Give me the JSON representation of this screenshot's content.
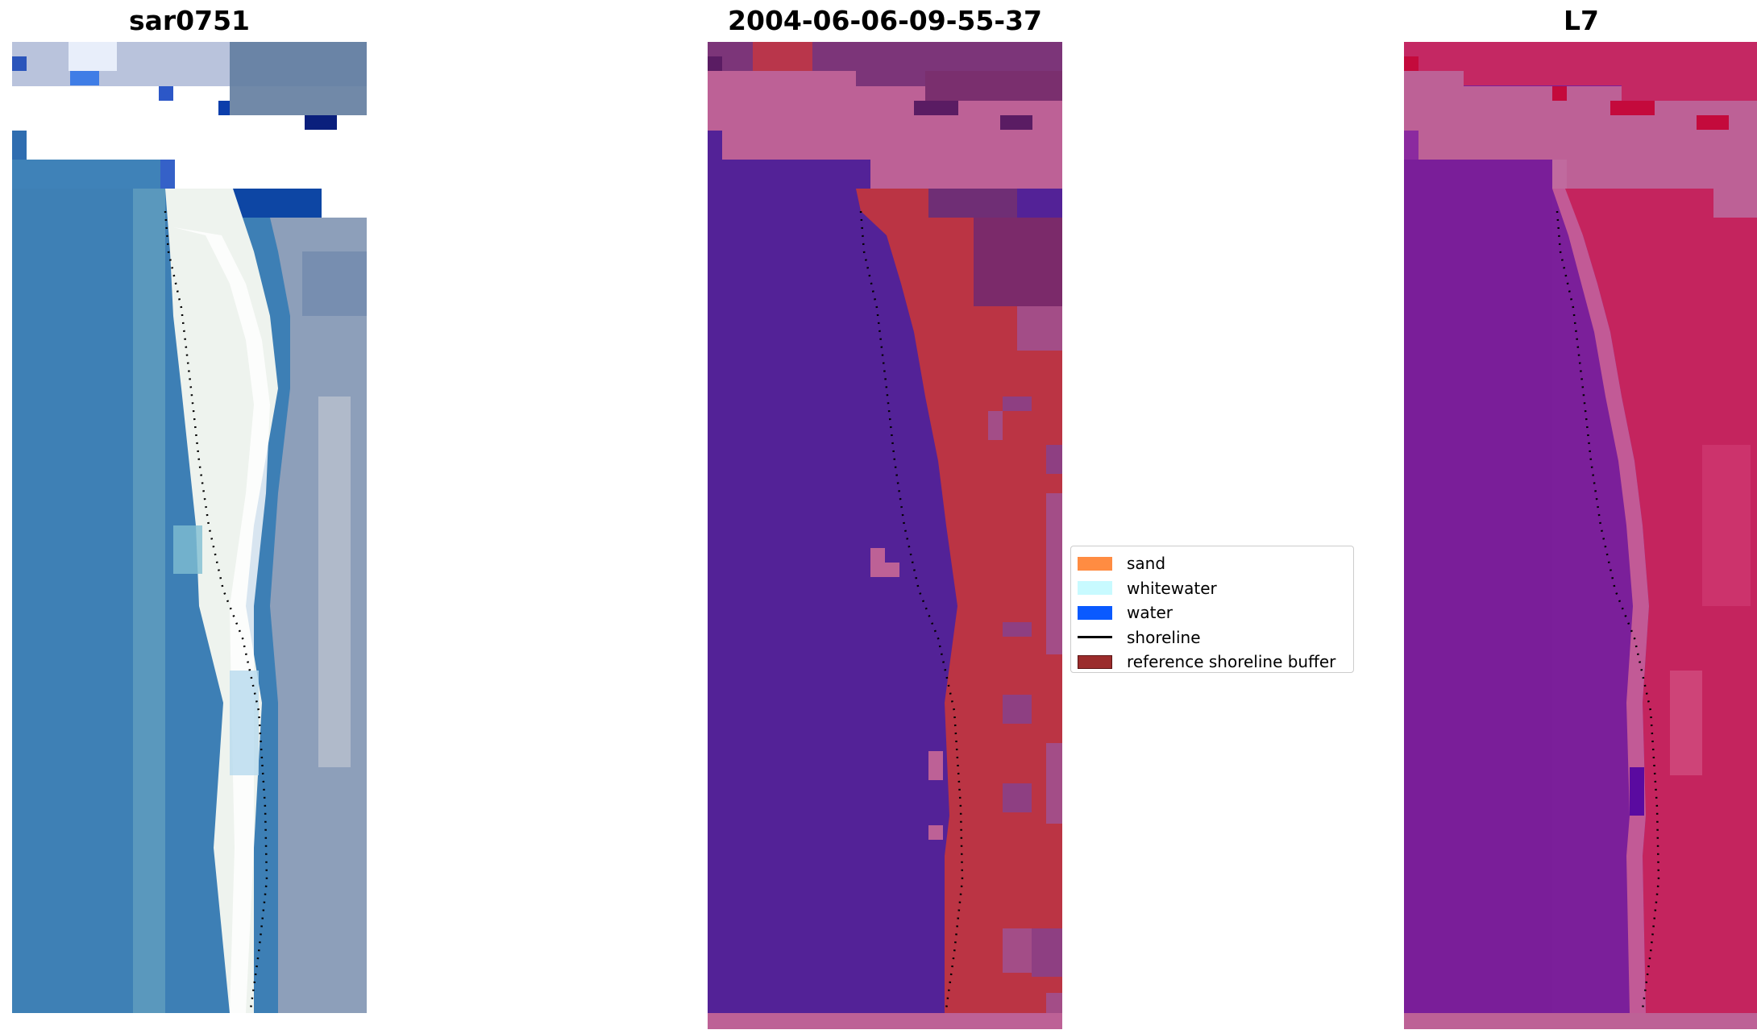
{
  "titles": {
    "left": "sar0751",
    "middle": "2004-06-06-09-55-37",
    "right": "L7"
  },
  "colors": {
    "sand": "#ff8c42",
    "whitewater": "#c8faff",
    "water": "#0a5aff",
    "shoreline": "#000000",
    "reference_buffer": "#9b2c2c",
    "classified_water": "#532297",
    "classified_buffer": "#bb3444",
    "nodata_pink": "#bd6196",
    "rgb_sea": "#3b7db5",
    "rgb_foam": "#f2f6f0",
    "false_color_purple": "#7b1f9a",
    "false_color_red": "#c42059"
  },
  "legend": {
    "items": [
      {
        "label": "sand",
        "color": "#ff8c42",
        "kind": "swatch"
      },
      {
        "label": "whitewater",
        "color": "#c8faff",
        "kind": "swatch"
      },
      {
        "label": "water",
        "color": "#0a5aff",
        "kind": "swatch"
      },
      {
        "label": "shoreline",
        "color": "#000000",
        "kind": "line"
      },
      {
        "label": "reference shoreline buffer",
        "color": "#9b2c2c",
        "kind": "swatch"
      }
    ]
  }
}
